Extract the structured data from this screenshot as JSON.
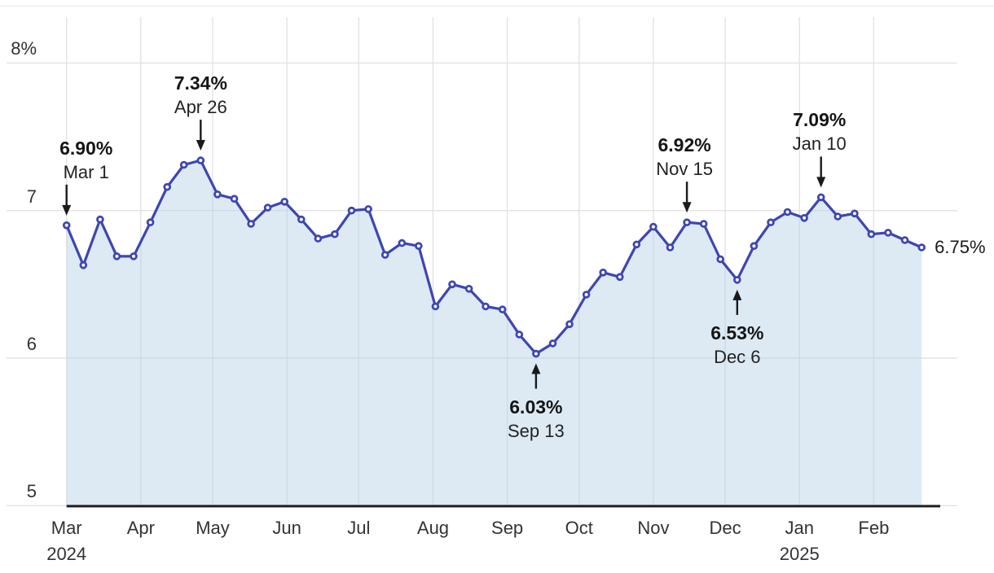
{
  "chart_data": {
    "type": "line",
    "unit": "%",
    "x": [
      "Mar 1",
      "Mar 8",
      "Mar 15",
      "Mar 22",
      "Mar 29",
      "Apr 5",
      "Apr 12",
      "Apr 19",
      "Apr 26",
      "May 3",
      "May 10",
      "May 17",
      "May 24",
      "May 31",
      "Jun 7",
      "Jun 14",
      "Jun 21",
      "Jun 28",
      "Jul 5",
      "Jul 12",
      "Jul 19",
      "Jul 26",
      "Aug 2",
      "Aug 9",
      "Aug 16",
      "Aug 23",
      "Aug 30",
      "Sep 6",
      "Sep 13",
      "Sep 20",
      "Sep 27",
      "Oct 4",
      "Oct 11",
      "Oct 18",
      "Oct 25",
      "Nov 1",
      "Nov 8",
      "Nov 15",
      "Nov 22",
      "Nov 29",
      "Dec 6",
      "Dec 13",
      "Dec 20",
      "Dec 27",
      "Jan 3",
      "Jan 10",
      "Jan 17",
      "Jan 24",
      "Jan 31",
      "Feb 7",
      "Feb 14",
      "Feb 21"
    ],
    "values": [
      6.9,
      6.63,
      6.94,
      6.69,
      6.69,
      6.92,
      7.16,
      7.31,
      7.34,
      7.11,
      7.08,
      6.91,
      7.02,
      7.06,
      6.94,
      6.81,
      6.84,
      7.0,
      7.01,
      6.7,
      6.78,
      6.76,
      6.35,
      6.5,
      6.47,
      6.35,
      6.33,
      6.16,
      6.03,
      6.1,
      6.23,
      6.43,
      6.58,
      6.55,
      6.77,
      6.89,
      6.75,
      6.92,
      6.91,
      6.67,
      6.53,
      6.76,
      6.92,
      6.99,
      6.95,
      7.09,
      6.96,
      6.98,
      6.84,
      6.85,
      6.8,
      6.75
    ],
    "ylim": [
      5,
      8.4
    ],
    "grid": true,
    "legend": false,
    "area_fill": true,
    "y_ticks": [
      {
        "value": 8,
        "label": "8%"
      },
      {
        "value": 7,
        "label": "7"
      },
      {
        "value": 6,
        "label": "6"
      },
      {
        "value": 5,
        "label": "5"
      }
    ],
    "x_ticks": [
      {
        "label": "Mar",
        "year": "2024",
        "day": 0
      },
      {
        "label": "Apr",
        "day": 31
      },
      {
        "label": "May",
        "day": 61
      },
      {
        "label": "Jun",
        "day": 92
      },
      {
        "label": "Jul",
        "day": 122
      },
      {
        "label": "Aug",
        "day": 153
      },
      {
        "label": "Sep",
        "day": 184
      },
      {
        "label": "Oct",
        "day": 214
      },
      {
        "label": "Nov",
        "day": 245
      },
      {
        "label": "Dec",
        "day": 275
      },
      {
        "label": "Jan",
        "year": "2025",
        "day": 306
      },
      {
        "label": "Feb",
        "day": 337
      }
    ],
    "annotations": [
      {
        "value_label": "6.90%",
        "date_label": "Mar 1",
        "index": 0,
        "direction": "down",
        "text_dx": 24
      },
      {
        "value_label": "7.34%",
        "date_label": "Apr 26",
        "index": 8,
        "direction": "down",
        "text_dx": 0
      },
      {
        "value_label": "6.03%",
        "date_label": "Sep 13",
        "index": 28,
        "direction": "up",
        "text_dx": 0
      },
      {
        "value_label": "6.92%",
        "date_label": "Nov 15",
        "index": 37,
        "direction": "down",
        "text_dx": -3
      },
      {
        "value_label": "6.53%",
        "date_label": "Dec 6",
        "index": 40,
        "direction": "up",
        "text_dx": 0
      },
      {
        "value_label": "7.09%",
        "date_label": "Jan 10",
        "index": 45,
        "direction": "down",
        "text_dx": -2
      }
    ],
    "end_label": "6.75%",
    "colors": {
      "line": "#3e46b2",
      "marker_fill": "#ffffff",
      "area": "rgba(183,211,232,0.47)",
      "grid": "#e3e3e3",
      "top_border": "#ececec",
      "axis": "#1f1f1f",
      "tick_text": "#333333",
      "annotation_text": "#151515"
    }
  }
}
